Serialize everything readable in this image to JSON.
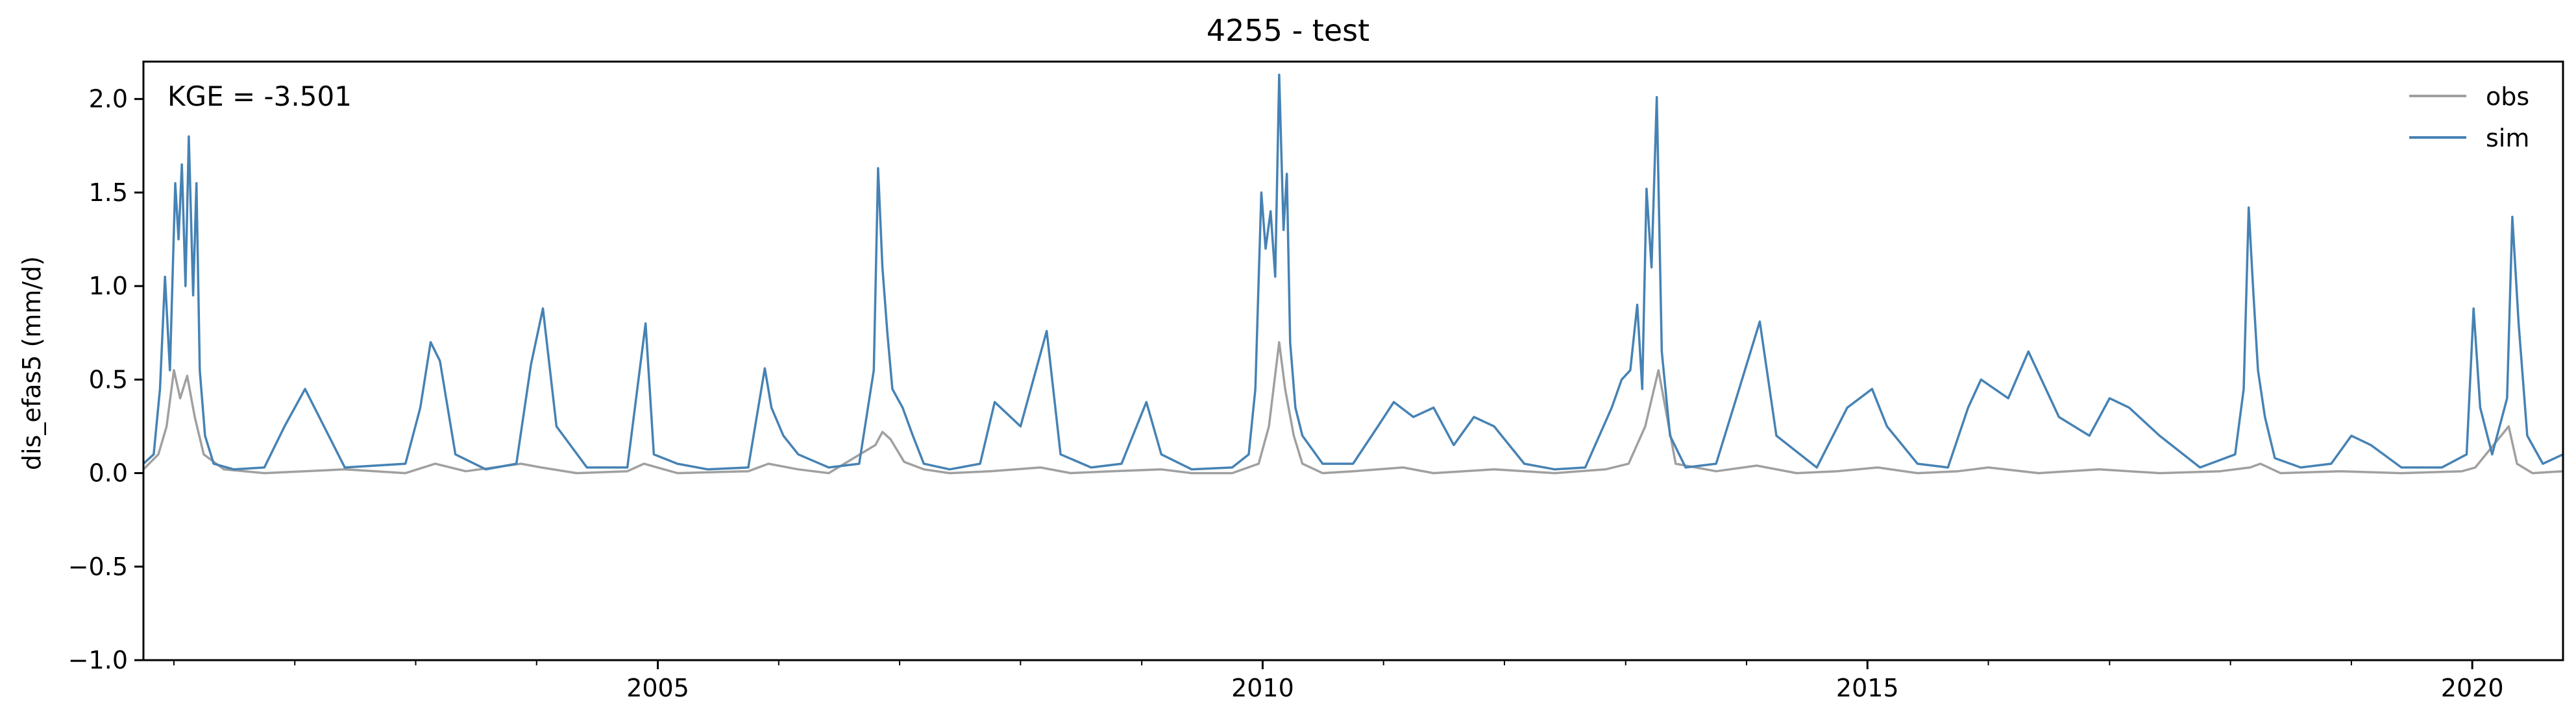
{
  "chart_data": {
    "type": "line",
    "title": "4255 - test",
    "xlabel": "",
    "ylabel": "dis_efas5 (mm/d)",
    "annotation": "KGE = -3.501",
    "xlim": [
      "2000-10-01",
      "2020-10-01"
    ],
    "ylim": [
      -1.0,
      2.2
    ],
    "x_ticks": [
      "2005-01-01",
      "2010-01-01",
      "2015-01-01",
      "2020-01-01"
    ],
    "x_tick_labels": [
      "2005",
      "2010",
      "2015",
      "2020"
    ],
    "y_ticks": [
      -1.0,
      -0.5,
      0.0,
      0.5,
      1.0,
      1.5,
      2.0
    ],
    "y_tick_labels": [
      "−1.0",
      "−0.5",
      "0.0",
      "0.5",
      "1.0",
      "1.5",
      "2.0"
    ],
    "grid": false,
    "legend_position": "top-right",
    "series": [
      {
        "name": "obs",
        "color": "#a0a0a0",
        "x": [
          "2000-10-01",
          "2000-11-15",
          "2000-12-10",
          "2001-01-01",
          "2001-01-20",
          "2001-02-10",
          "2001-03-05",
          "2001-04-01",
          "2001-06-01",
          "2001-10-01",
          "2002-06-01",
          "2002-12-01",
          "2003-03-01",
          "2003-06-01",
          "2003-11-15",
          "2004-01-15",
          "2004-05-01",
          "2004-10-01",
          "2004-11-20",
          "2005-03-01",
          "2005-10-01",
          "2005-12-01",
          "2006-03-01",
          "2006-06-01",
          "2006-10-20",
          "2006-11-10",
          "2006-12-05",
          "2007-01-15",
          "2007-03-15",
          "2007-06-01",
          "2007-10-01",
          "2008-03-01",
          "2008-06-01",
          "2008-10-01",
          "2009-03-01",
          "2009-06-01",
          "2009-10-01",
          "2009-12-20",
          "2010-01-20",
          "2010-02-20",
          "2010-03-10",
          "2010-04-05",
          "2010-05-01",
          "2010-07-01",
          "2010-10-01",
          "2011-03-01",
          "2011-06-01",
          "2011-12-01",
          "2012-06-01",
          "2012-11-01",
          "2013-01-10",
          "2013-03-01",
          "2013-04-10",
          "2013-06-01",
          "2013-10-01",
          "2014-02-01",
          "2014-06-01",
          "2014-10-01",
          "2015-02-01",
          "2015-06-01",
          "2015-10-01",
          "2016-01-01",
          "2016-06-01",
          "2016-12-01",
          "2017-06-01",
          "2017-12-01",
          "2018-03-01",
          "2018-04-01",
          "2018-06-01",
          "2018-12-01",
          "2019-06-01",
          "2019-12-01",
          "2020-01-10",
          "2020-04-20",
          "2020-05-15",
          "2020-07-01",
          "2020-10-01"
        ],
        "values": [
          0.02,
          0.1,
          0.25,
          0.55,
          0.4,
          0.52,
          0.3,
          0.1,
          0.02,
          0.0,
          0.02,
          0.0,
          0.05,
          0.01,
          0.05,
          0.03,
          0.0,
          0.01,
          0.05,
          0.0,
          0.01,
          0.05,
          0.02,
          0.0,
          0.15,
          0.22,
          0.18,
          0.06,
          0.02,
          0.0,
          0.01,
          0.03,
          0.0,
          0.01,
          0.02,
          0.0,
          0.0,
          0.05,
          0.25,
          0.7,
          0.45,
          0.2,
          0.05,
          0.0,
          0.01,
          0.03,
          0.0,
          0.02,
          0.0,
          0.02,
          0.05,
          0.25,
          0.55,
          0.05,
          0.01,
          0.04,
          0.0,
          0.01,
          0.03,
          0.0,
          0.01,
          0.03,
          0.0,
          0.02,
          0.0,
          0.01,
          0.03,
          0.05,
          0.0,
          0.01,
          0.0,
          0.01,
          0.03,
          0.25,
          0.05,
          0.0,
          0.01
        ]
      },
      {
        "name": "sim",
        "color": "#4682b4",
        "x": [
          "2000-10-01",
          "2000-11-01",
          "2000-11-20",
          "2000-12-05",
          "2000-12-20",
          "2001-01-05",
          "2001-01-15",
          "2001-01-25",
          "2001-02-05",
          "2001-02-15",
          "2001-02-28",
          "2001-03-10",
          "2001-03-20",
          "2001-04-05",
          "2001-05-01",
          "2001-07-01",
          "2001-10-01",
          "2001-12-01",
          "2002-02-01",
          "2002-06-01",
          "2002-12-01",
          "2003-01-15",
          "2003-02-15",
          "2003-03-15",
          "2003-05-01",
          "2003-08-01",
          "2003-11-01",
          "2003-12-15",
          "2004-01-20",
          "2004-03-01",
          "2004-06-01",
          "2004-10-01",
          "2004-11-25",
          "2004-12-20",
          "2005-03-01",
          "2005-06-01",
          "2005-10-01",
          "2005-11-20",
          "2005-12-10",
          "2006-01-15",
          "2006-03-01",
          "2006-06-01",
          "2006-09-01",
          "2006-10-15",
          "2006-10-28",
          "2006-11-10",
          "2006-11-25",
          "2006-12-10",
          "2007-01-10",
          "2007-02-10",
          "2007-03-15",
          "2007-06-01",
          "2007-09-01",
          "2007-10-15",
          "2008-01-01",
          "2008-03-20",
          "2008-05-01",
          "2008-08-01",
          "2008-11-01",
          "2009-01-15",
          "2009-03-01",
          "2009-06-01",
          "2009-10-01",
          "2009-11-20",
          "2009-12-10",
          "2009-12-28",
          "2010-01-10",
          "2010-01-25",
          "2010-02-08",
          "2010-02-20",
          "2010-03-05",
          "2010-03-15",
          "2010-03-25",
          "2010-04-10",
          "2010-05-01",
          "2010-07-01",
          "2010-10-01",
          "2010-12-15",
          "2011-02-01",
          "2011-04-01",
          "2011-06-01",
          "2011-08-01",
          "2011-10-01",
          "2011-12-01",
          "2012-03-01",
          "2012-06-01",
          "2012-09-01",
          "2012-11-20",
          "2012-12-20",
          "2013-01-15",
          "2013-02-05",
          "2013-02-20",
          "2013-03-05",
          "2013-03-20",
          "2013-04-05",
          "2013-04-20",
          "2013-05-15",
          "2013-07-01",
          "2013-10-01",
          "2013-12-01",
          "2014-02-10",
          "2014-04-01",
          "2014-08-01",
          "2014-11-01",
          "2015-01-15",
          "2015-03-01",
          "2015-06-01",
          "2015-09-01",
          "2015-11-01",
          "2015-12-10",
          "2016-01-20",
          "2016-03-01",
          "2016-05-01",
          "2016-08-01",
          "2016-11-01",
          "2017-01-01",
          "2017-03-01",
          "2017-06-01",
          "2017-10-01",
          "2018-01-15",
          "2018-02-10",
          "2018-02-25",
          "2018-03-10",
          "2018-03-25",
          "2018-04-15",
          "2018-05-15",
          "2018-08-01",
          "2018-11-01",
          "2019-01-01",
          "2019-03-01",
          "2019-06-01",
          "2019-10-01",
          "2019-12-15",
          "2020-01-05",
          "2020-01-25",
          "2020-03-01",
          "2020-04-15",
          "2020-05-01",
          "2020-05-20",
          "2020-06-15",
          "2020-08-01",
          "2020-10-01"
        ],
        "values": [
          0.05,
          0.1,
          0.45,
          1.05,
          0.55,
          1.55,
          1.25,
          1.65,
          1.0,
          1.8,
          0.95,
          1.55,
          0.55,
          0.2,
          0.05,
          0.02,
          0.03,
          0.25,
          0.45,
          0.03,
          0.05,
          0.35,
          0.7,
          0.6,
          0.1,
          0.02,
          0.05,
          0.58,
          0.88,
          0.25,
          0.03,
          0.03,
          0.8,
          0.1,
          0.05,
          0.02,
          0.03,
          0.56,
          0.35,
          0.2,
          0.1,
          0.03,
          0.05,
          0.55,
          1.63,
          1.1,
          0.75,
          0.45,
          0.35,
          0.2,
          0.05,
          0.02,
          0.05,
          0.38,
          0.25,
          0.76,
          0.1,
          0.03,
          0.05,
          0.38,
          0.1,
          0.02,
          0.03,
          0.1,
          0.45,
          1.5,
          1.2,
          1.4,
          1.05,
          2.13,
          1.3,
          1.6,
          0.7,
          0.35,
          0.2,
          0.05,
          0.05,
          0.25,
          0.38,
          0.3,
          0.35,
          0.15,
          0.3,
          0.25,
          0.05,
          0.02,
          0.03,
          0.35,
          0.5,
          0.55,
          0.9,
          0.45,
          1.52,
          1.1,
          2.01,
          0.65,
          0.2,
          0.03,
          0.05,
          0.4,
          0.81,
          0.2,
          0.03,
          0.35,
          0.45,
          0.25,
          0.05,
          0.03,
          0.35,
          0.5,
          0.45,
          0.4,
          0.65,
          0.3,
          0.2,
          0.4,
          0.35,
          0.2,
          0.03,
          0.1,
          0.45,
          1.42,
          1.0,
          0.55,
          0.3,
          0.08,
          0.03,
          0.05,
          0.2,
          0.15,
          0.03,
          0.03,
          0.1,
          0.88,
          0.35,
          0.1,
          0.4,
          1.37,
          0.8,
          0.2,
          0.05,
          0.1
        ]
      }
    ]
  }
}
